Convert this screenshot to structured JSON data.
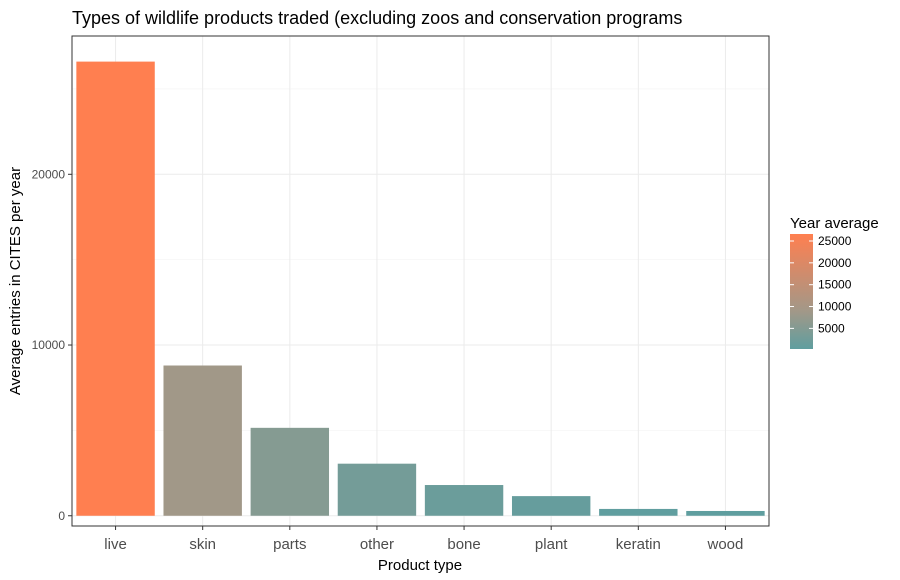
{
  "chart_data": {
    "type": "bar",
    "title": "Types of wildlife products traded (excluding zoos and conservation programs",
    "xlabel": "Product type",
    "ylabel": "Average entries in CITES per year",
    "categories": [
      "live",
      "skin",
      "parts",
      "other",
      "bone",
      "plant",
      "keratin",
      "wood"
    ],
    "values": [
      26600,
      8800,
      5150,
      3050,
      1800,
      1150,
      400,
      280
    ],
    "ylim": [
      -600,
      28100
    ],
    "yticks": [
      0,
      10000,
      20000
    ],
    "ytick_labels": [
      "0",
      "10000",
      "20000"
    ],
    "grid": true,
    "legend": {
      "title": "Year average",
      "position": "right",
      "type": "colorbar",
      "range": [
        280,
        26600
      ],
      "ticks": [
        5000,
        10000,
        15000,
        20000,
        25000
      ],
      "tick_labels": [
        "5000",
        "10000",
        "15000",
        "20000",
        "25000"
      ]
    },
    "colors": {
      "low": "#5f9e9f",
      "mid": "#a29888",
      "high": "#ff7f50"
    }
  }
}
